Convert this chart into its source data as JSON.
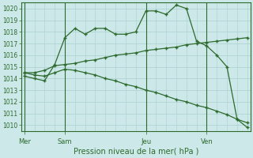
{
  "xlabel": "Pression niveau de la mer( hPa )",
  "background_color": "#cce8e8",
  "grid_color": "#aacfcf",
  "line_color": "#2d6a2d",
  "ylim": [
    1009.5,
    1020.5
  ],
  "yticks": [
    1010,
    1011,
    1012,
    1013,
    1014,
    1015,
    1016,
    1017,
    1018,
    1019,
    1020
  ],
  "xtick_labels": [
    "Mer",
    "Sam",
    "Jeu",
    "Ven"
  ],
  "xtick_positions": [
    0,
    4,
    12,
    18
  ],
  "vline_positions": [
    0,
    4,
    12,
    18
  ],
  "num_points": 23,
  "line1_y": [
    1014.2,
    1014.0,
    1013.8,
    1015.2,
    1017.5,
    1018.3,
    1017.8,
    1018.3,
    1018.3,
    1017.8,
    1017.8,
    1018.0,
    1019.8,
    1019.8,
    1019.5,
    1020.3,
    1020.0,
    1017.2,
    1016.8,
    1016.0,
    1015.0,
    1010.5,
    1009.8
  ],
  "line2_y": [
    1014.5,
    1014.5,
    1014.7,
    1015.1,
    1015.2,
    1015.3,
    1015.5,
    1015.6,
    1015.8,
    1016.0,
    1016.1,
    1016.2,
    1016.4,
    1016.5,
    1016.6,
    1016.7,
    1016.9,
    1017.0,
    1017.1,
    1017.2,
    1017.3,
    1017.4,
    1017.5
  ],
  "line3_y": [
    1014.5,
    1014.3,
    1014.2,
    1014.5,
    1014.8,
    1014.7,
    1014.5,
    1014.3,
    1014.0,
    1013.8,
    1013.5,
    1013.3,
    1013.0,
    1012.8,
    1012.5,
    1012.2,
    1012.0,
    1011.7,
    1011.5,
    1011.2,
    1010.9,
    1010.5,
    1010.2
  ]
}
